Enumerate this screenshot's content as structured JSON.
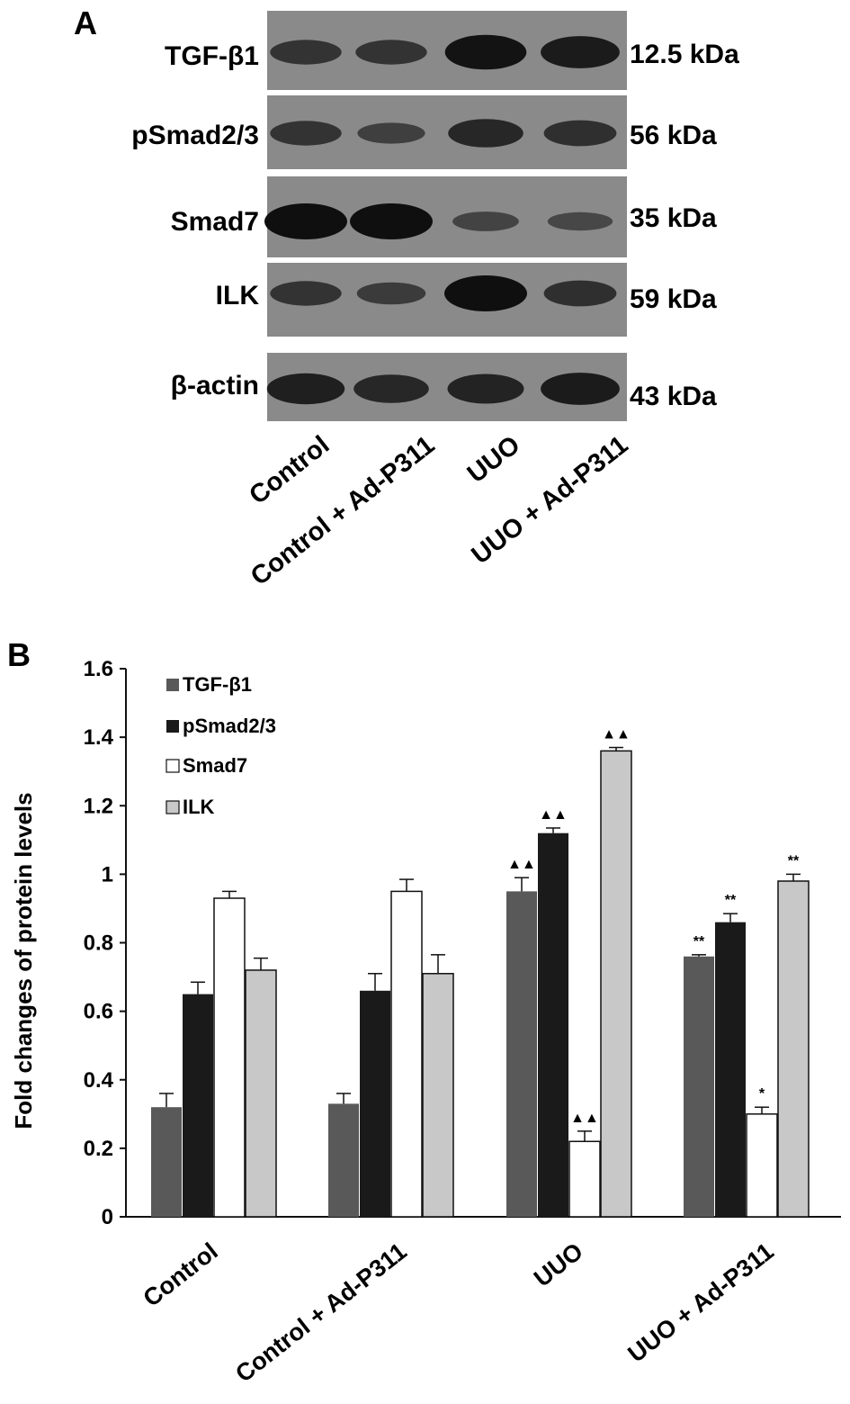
{
  "panel_a": {
    "letter": "A",
    "blots": [
      {
        "label": "TGF-β1",
        "mw": "12.5 kDa",
        "intensities": [
          0.55,
          0.55,
          0.95,
          0.85
        ]
      },
      {
        "label": "pSmad2/3",
        "mw": "56 kDa",
        "intensities": [
          0.55,
          0.4,
          0.7,
          0.6
        ]
      },
      {
        "label": "Smad7",
        "mw": "35 kDa",
        "intensities": [
          1.0,
          1.0,
          0.35,
          0.3
        ]
      },
      {
        "label": "ILK",
        "mw": "59 kDa",
        "intensities": [
          0.55,
          0.45,
          1.0,
          0.6
        ]
      },
      {
        "label": "β-actin",
        "mw": "43 kDa",
        "intensities": [
          0.8,
          0.7,
          0.75,
          0.85
        ]
      }
    ],
    "lanes": [
      "Control",
      "Control + Ad-P311",
      "UUO",
      "UUO + Ad-P311"
    ]
  },
  "chart_data": {
    "type": "bar",
    "panel_letter": "B",
    "categories": [
      "Control",
      "Control + Ad-P311",
      "UUO",
      "UUO + Ad-P311"
    ],
    "series": [
      {
        "name": "TGF-β1",
        "color": "#595959",
        "values": [
          0.32,
          0.33,
          0.95,
          0.76
        ],
        "errors": [
          0.04,
          0.03,
          0.04,
          0.005
        ],
        "annotations": [
          "",
          "",
          "▲▲",
          "**"
        ]
      },
      {
        "name": "pSmad2/3",
        "color": "#1a1a1a",
        "values": [
          0.65,
          0.66,
          1.12,
          0.86
        ],
        "errors": [
          0.035,
          0.05,
          0.015,
          0.025
        ],
        "annotations": [
          "",
          "",
          "▲▲",
          "**"
        ]
      },
      {
        "name": "Smad7",
        "color": "#ffffff",
        "values": [
          0.93,
          0.95,
          0.22,
          0.3
        ],
        "errors": [
          0.02,
          0.035,
          0.03,
          0.02
        ],
        "annotations": [
          "",
          "",
          "▲▲",
          "*"
        ]
      },
      {
        "name": "ILK",
        "color": "#c8c8c8",
        "values": [
          0.72,
          0.71,
          1.36,
          0.98
        ],
        "errors": [
          0.035,
          0.055,
          0.01,
          0.02
        ],
        "annotations": [
          "",
          "",
          "▲▲",
          "**"
        ]
      }
    ],
    "ylabel": "Fold changes of protein levels",
    "xlabel": "",
    "ylim": [
      0,
      1.6
    ],
    "yticks": [
      "0",
      "0.2",
      "0.4",
      "0.6",
      "0.8",
      "1",
      "1.2",
      "1.4",
      "1.6"
    ],
    "legend_position": "top-left",
    "grid": false
  }
}
